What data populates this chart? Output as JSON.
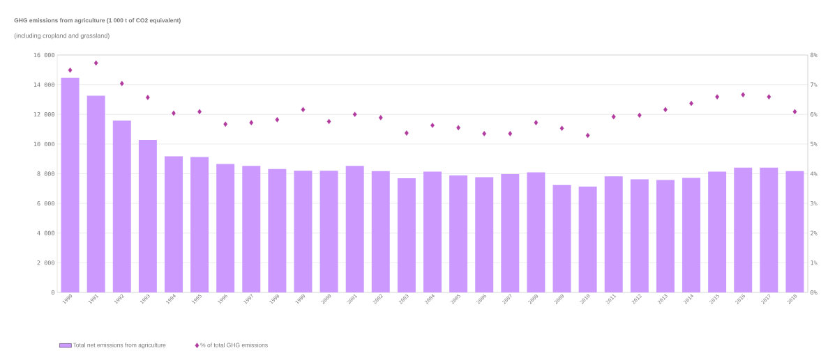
{
  "chart_data": {
    "type": "bar",
    "title": "GHG emissions from agriculture (1 000 t of CO2 equivalent)",
    "subtitle": "(including cropland and grassland)",
    "categories": [
      "1990",
      "1991",
      "1992",
      "1993",
      "1994",
      "1995",
      "1996",
      "1997",
      "1998",
      "1999",
      "2000",
      "2001",
      "2002",
      "2003",
      "2004",
      "2005",
      "2006",
      "2007",
      "2008",
      "2009",
      "2010",
      "2011",
      "2012",
      "2013",
      "2014",
      "2015",
      "2016",
      "2017",
      "2018"
    ],
    "series": [
      {
        "name": "Total net emissions from agriculture",
        "color": "#cc99ff",
        "values": [
          14460,
          13260,
          11580,
          10280,
          9170,
          9130,
          8660,
          8530,
          8320,
          8200,
          8200,
          8530,
          8180,
          7700,
          8140,
          7880,
          7770,
          7980,
          8090,
          7240,
          7130,
          7820,
          7630,
          7580,
          7720,
          8140,
          8410,
          8410,
          8180
        ]
      },
      {
        "name": "% of total GHG emissions",
        "type": "scatter",
        "axis": "y2",
        "marker": "diamond",
        "color": "#b03a9e",
        "values": [
          7.49,
          7.73,
          7.04,
          6.57,
          6.04,
          6.09,
          5.67,
          5.72,
          5.82,
          6.16,
          5.76,
          6.0,
          5.89,
          5.37,
          5.63,
          5.55,
          5.35,
          5.35,
          5.72,
          5.53,
          5.29,
          5.92,
          5.97,
          6.16,
          6.37,
          6.59,
          6.66,
          6.59,
          6.09
        ]
      }
    ],
    "ylim": [
      0,
      16000
    ],
    "yticks": [
      {
        "value": 0,
        "label": "0"
      },
      {
        "value": 2000,
        "label": "2 000"
      },
      {
        "value": 4000,
        "label": "4 000"
      },
      {
        "value": 6000,
        "label": "6 000"
      },
      {
        "value": 8000,
        "label": "8 000"
      },
      {
        "value": 10000,
        "label": "10 000"
      },
      {
        "value": 12000,
        "label": "12 000"
      },
      {
        "value": 14000,
        "label": "14 000"
      },
      {
        "value": 16000,
        "label": "16 000"
      }
    ],
    "y2lim": [
      0,
      8
    ],
    "y2ticks": [
      {
        "value": 0,
        "label": "0%"
      },
      {
        "value": 1,
        "label": "1%"
      },
      {
        "value": 2,
        "label": "2%"
      },
      {
        "value": 3,
        "label": "3%"
      },
      {
        "value": 4,
        "label": "4%"
      },
      {
        "value": 5,
        "label": "5%"
      },
      {
        "value": 6,
        "label": "6%"
      },
      {
        "value": 7,
        "label": "7%"
      },
      {
        "value": 8,
        "label": "8%"
      }
    ],
    "grid": "y",
    "legend": "bottom left"
  }
}
